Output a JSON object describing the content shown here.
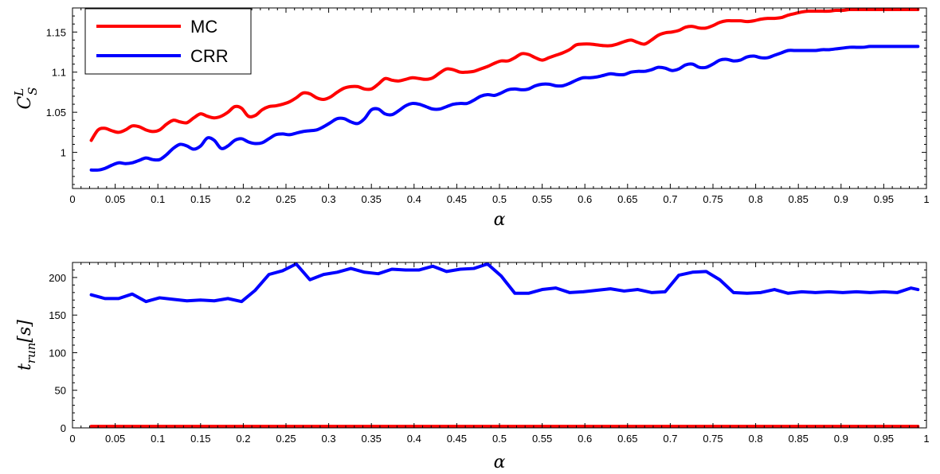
{
  "chart_data": [
    {
      "type": "line",
      "xlabel": "α",
      "ylabel": {
        "main": "C",
        "sup": "L",
        "sub": "S"
      },
      "xlim": [
        0,
        1
      ],
      "ylim": [
        0.955,
        1.18
      ],
      "xticks": [
        0,
        0.05,
        0.1,
        0.15,
        0.2,
        0.25,
        0.3,
        0.35,
        0.4,
        0.45,
        0.5,
        0.55,
        0.6,
        0.65,
        0.7,
        0.75,
        0.8,
        0.85,
        0.9,
        0.95,
        1
      ],
      "xtick_labels": [
        "0",
        "0.05",
        "0.1",
        "0.15",
        "0.2",
        "0.25",
        "0.3",
        "0.35",
        "0.4",
        "0.45",
        "0.5",
        "0.55",
        "0.6",
        "0.65",
        "0.7",
        "0.75",
        "0.8",
        "0.85",
        "0.9",
        "0.95",
        "1"
      ],
      "yticks": [
        1,
        1.05,
        1.1,
        1.15
      ],
      "ytick_labels": [
        "1",
        "1.05",
        "1.1",
        "1.15"
      ],
      "grid": false,
      "legend_position": "top-left",
      "series": [
        {
          "name": "MC",
          "color": "#ff0000",
          "x": [
            0.022,
            0.03,
            0.038,
            0.046,
            0.054,
            0.062,
            0.07,
            0.078,
            0.086,
            0.094,
            0.102,
            0.11,
            0.118,
            0.126,
            0.134,
            0.142,
            0.15,
            0.158,
            0.166,
            0.174,
            0.182,
            0.19,
            0.198,
            0.206,
            0.214,
            0.222,
            0.23,
            0.238,
            0.246,
            0.254,
            0.262,
            0.27,
            0.278,
            0.286,
            0.294,
            0.302,
            0.31,
            0.318,
            0.326,
            0.334,
            0.342,
            0.35,
            0.358,
            0.366,
            0.374,
            0.382,
            0.39,
            0.398,
            0.406,
            0.414,
            0.422,
            0.43,
            0.438,
            0.446,
            0.454,
            0.462,
            0.47,
            0.478,
            0.486,
            0.494,
            0.502,
            0.51,
            0.518,
            0.526,
            0.534,
            0.542,
            0.55,
            0.558,
            0.566,
            0.574,
            0.582,
            0.59,
            0.598,
            0.606,
            0.614,
            0.622,
            0.63,
            0.638,
            0.646,
            0.654,
            0.662,
            0.67,
            0.678,
            0.686,
            0.694,
            0.702,
            0.71,
            0.718,
            0.726,
            0.734,
            0.742,
            0.75,
            0.758,
            0.766,
            0.774,
            0.782,
            0.79,
            0.798,
            0.806,
            0.814,
            0.822,
            0.83,
            0.838,
            0.846,
            0.854,
            0.862,
            0.87,
            0.878,
            0.886,
            0.894,
            0.902,
            0.91,
            0.918,
            0.926,
            0.934,
            0.942,
            0.95,
            0.958,
            0.966,
            0.974,
            0.982,
            0.99
          ],
          "y": [
            1.015,
            1.028,
            1.03,
            1.027,
            1.025,
            1.028,
            1.033,
            1.032,
            1.028,
            1.026,
            1.028,
            1.035,
            1.04,
            1.038,
            1.037,
            1.043,
            1.048,
            1.045,
            1.043,
            1.045,
            1.05,
            1.057,
            1.055,
            1.045,
            1.046,
            1.053,
            1.057,
            1.058,
            1.06,
            1.063,
            1.068,
            1.074,
            1.073,
            1.068,
            1.066,
            1.069,
            1.075,
            1.08,
            1.082,
            1.082,
            1.079,
            1.079,
            1.085,
            1.092,
            1.09,
            1.089,
            1.091,
            1.093,
            1.092,
            1.091,
            1.093,
            1.099,
            1.104,
            1.103,
            1.1,
            1.1,
            1.101,
            1.104,
            1.107,
            1.111,
            1.114,
            1.114,
            1.118,
            1.123,
            1.122,
            1.118,
            1.115,
            1.118,
            1.121,
            1.124,
            1.128,
            1.134,
            1.135,
            1.135,
            1.134,
            1.133,
            1.133,
            1.135,
            1.138,
            1.14,
            1.137,
            1.135,
            1.14,
            1.146,
            1.149,
            1.15,
            1.152,
            1.156,
            1.157,
            1.155,
            1.155,
            1.158,
            1.162,
            1.164,
            1.164,
            1.164,
            1.163,
            1.164,
            1.166,
            1.167,
            1.167,
            1.168,
            1.171,
            1.173,
            1.175,
            1.176,
            1.176,
            1.176,
            1.176,
            1.177,
            1.177,
            1.178,
            1.178,
            1.178,
            1.178,
            1.178,
            1.178,
            1.178,
            1.178,
            1.178,
            1.178,
            1.178
          ]
        },
        {
          "name": "CRR",
          "color": "#0000ff",
          "x": [
            0.022,
            0.03,
            0.038,
            0.046,
            0.054,
            0.062,
            0.07,
            0.078,
            0.086,
            0.094,
            0.102,
            0.11,
            0.118,
            0.126,
            0.134,
            0.142,
            0.15,
            0.158,
            0.166,
            0.174,
            0.182,
            0.19,
            0.198,
            0.206,
            0.214,
            0.222,
            0.23,
            0.238,
            0.246,
            0.254,
            0.262,
            0.27,
            0.278,
            0.286,
            0.294,
            0.302,
            0.31,
            0.318,
            0.326,
            0.334,
            0.342,
            0.35,
            0.358,
            0.366,
            0.374,
            0.382,
            0.39,
            0.398,
            0.406,
            0.414,
            0.422,
            0.43,
            0.438,
            0.446,
            0.454,
            0.462,
            0.47,
            0.478,
            0.486,
            0.494,
            0.502,
            0.51,
            0.518,
            0.526,
            0.534,
            0.542,
            0.55,
            0.558,
            0.566,
            0.574,
            0.582,
            0.59,
            0.598,
            0.606,
            0.614,
            0.622,
            0.63,
            0.638,
            0.646,
            0.654,
            0.662,
            0.67,
            0.678,
            0.686,
            0.694,
            0.702,
            0.71,
            0.718,
            0.726,
            0.734,
            0.742,
            0.75,
            0.758,
            0.766,
            0.774,
            0.782,
            0.79,
            0.798,
            0.806,
            0.814,
            0.822,
            0.83,
            0.838,
            0.846,
            0.854,
            0.862,
            0.87,
            0.878,
            0.886,
            0.894,
            0.902,
            0.91,
            0.918,
            0.926,
            0.934,
            0.942,
            0.95,
            0.958,
            0.966,
            0.974,
            0.982,
            0.99
          ],
          "y": [
            0.978,
            0.978,
            0.98,
            0.984,
            0.987,
            0.986,
            0.987,
            0.99,
            0.993,
            0.991,
            0.991,
            0.997,
            1.005,
            1.01,
            1.008,
            1.004,
            1.008,
            1.018,
            1.015,
            1.005,
            1.008,
            1.015,
            1.017,
            1.013,
            1.011,
            1.012,
            1.017,
            1.022,
            1.023,
            1.022,
            1.024,
            1.026,
            1.027,
            1.028,
            1.032,
            1.037,
            1.042,
            1.042,
            1.038,
            1.036,
            1.042,
            1.053,
            1.054,
            1.048,
            1.047,
            1.052,
            1.058,
            1.061,
            1.06,
            1.057,
            1.054,
            1.054,
            1.057,
            1.06,
            1.061,
            1.061,
            1.065,
            1.07,
            1.072,
            1.071,
            1.074,
            1.078,
            1.079,
            1.078,
            1.079,
            1.083,
            1.085,
            1.085,
            1.083,
            1.083,
            1.086,
            1.09,
            1.093,
            1.093,
            1.094,
            1.096,
            1.098,
            1.097,
            1.097,
            1.1,
            1.101,
            1.101,
            1.103,
            1.106,
            1.105,
            1.102,
            1.104,
            1.109,
            1.11,
            1.106,
            1.106,
            1.11,
            1.115,
            1.116,
            1.114,
            1.115,
            1.119,
            1.12,
            1.118,
            1.118,
            1.121,
            1.124,
            1.127,
            1.127,
            1.127,
            1.127,
            1.127,
            1.128,
            1.128,
            1.129,
            1.13,
            1.131,
            1.131,
            1.131,
            1.132,
            1.132,
            1.132,
            1.132,
            1.132,
            1.132,
            1.132,
            1.132
          ]
        }
      ]
    },
    {
      "type": "line",
      "xlabel": "α",
      "ylabel": {
        "main": "t",
        "sub": "run",
        "suffix": "[s]"
      },
      "xlim": [
        0,
        1
      ],
      "ylim": [
        0,
        220
      ],
      "xticks": [
        0,
        0.05,
        0.1,
        0.15,
        0.2,
        0.25,
        0.3,
        0.35,
        0.4,
        0.45,
        0.5,
        0.55,
        0.6,
        0.65,
        0.7,
        0.75,
        0.8,
        0.85,
        0.9,
        0.95,
        1
      ],
      "xtick_labels": [
        "0",
        "0.05",
        "0.1",
        "0.15",
        "0.2",
        "0.25",
        "0.3",
        "0.35",
        "0.4",
        "0.45",
        "0.5",
        "0.55",
        "0.6",
        "0.65",
        "0.7",
        "0.75",
        "0.8",
        "0.85",
        "0.9",
        "0.95",
        "1"
      ],
      "yticks": [
        0,
        50,
        100,
        150,
        200
      ],
      "ytick_labels": [
        "0",
        "50",
        "100",
        "150",
        "200"
      ],
      "grid": false,
      "series": [
        {
          "color": "#0000ff",
          "x": [
            0.022,
            0.038,
            0.054,
            0.07,
            0.086,
            0.102,
            0.118,
            0.134,
            0.15,
            0.166,
            0.182,
            0.198,
            0.214,
            0.23,
            0.246,
            0.262,
            0.278,
            0.294,
            0.31,
            0.326,
            0.342,
            0.358,
            0.374,
            0.39,
            0.406,
            0.422,
            0.438,
            0.454,
            0.47,
            0.486,
            0.502,
            0.518,
            0.534,
            0.55,
            0.566,
            0.582,
            0.598,
            0.614,
            0.63,
            0.646,
            0.662,
            0.678,
            0.694,
            0.71,
            0.726,
            0.742,
            0.758,
            0.774,
            0.79,
            0.806,
            0.822,
            0.838,
            0.854,
            0.87,
            0.886,
            0.902,
            0.918,
            0.934,
            0.95,
            0.966,
            0.982,
            0.99
          ],
          "y": [
            177,
            172,
            172,
            178,
            168,
            173,
            171,
            169,
            170,
            169,
            172,
            168,
            183,
            204,
            209,
            218,
            197,
            204,
            207,
            212,
            207,
            205,
            211,
            210,
            210,
            215,
            208,
            211,
            212,
            218,
            202,
            179,
            179,
            184,
            186,
            180,
            181,
            183,
            185,
            182,
            184,
            180,
            181,
            203,
            207,
            208,
            197,
            180,
            179,
            180,
            184,
            179,
            181,
            180,
            181,
            180,
            181,
            180,
            181,
            180,
            186,
            184
          ]
        },
        {
          "color": "#ff0000",
          "x": [
            0.022,
            0.1,
            0.2,
            0.3,
            0.4,
            0.5,
            0.6,
            0.7,
            0.8,
            0.9,
            0.99
          ],
          "y": [
            2,
            2,
            2,
            2,
            2,
            2,
            2,
            2,
            2,
            2,
            2
          ]
        }
      ]
    }
  ]
}
